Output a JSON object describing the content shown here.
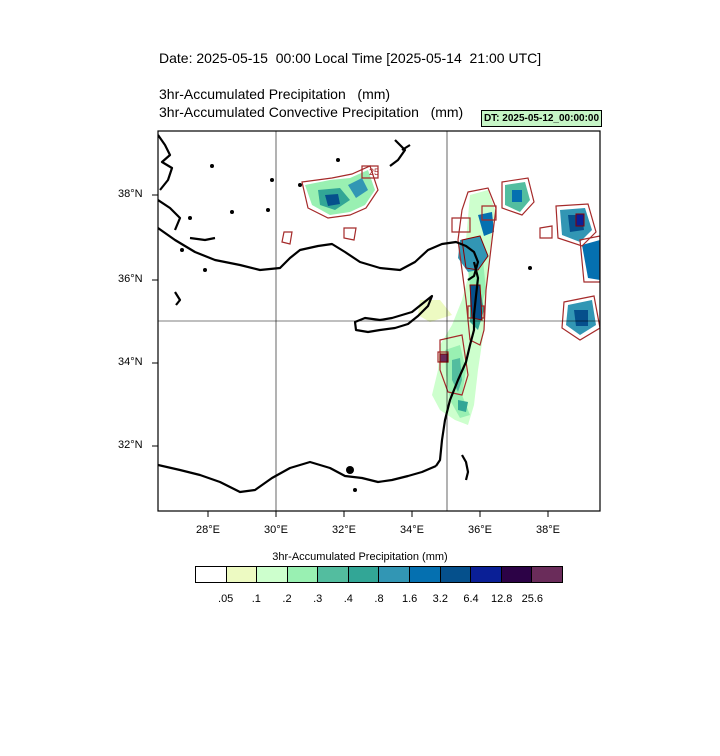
{
  "header": {
    "date_title": "Date: 2025-05-15  00:00 Local Time [2025-05-14  21:00 UTC]",
    "title_line1": "3hr-Accumulated Precipitation   (mm)",
    "title_line2": "3hr-Accumulated Convective Precipitation   (mm)",
    "dt_badge": "DT: 2025-05-12_00:00:00"
  },
  "map": {
    "lon_range": [
      26.6,
      39.4
    ],
    "lat_range": [
      30.3,
      39.4
    ],
    "lon_ticks": [
      "28°E",
      "30°E",
      "32°E",
      "34°E",
      "36°E",
      "38°E"
    ],
    "lat_ticks": [
      "32°N",
      "34°N",
      "36°N",
      "38°N"
    ],
    "grid_lines": {
      "lon": 30,
      "lon2": 35,
      "lat": 35
    },
    "contour_label": "25"
  },
  "colorbar": {
    "title": "3hr-Accumulated Precipitation   (mm)",
    "colors": [
      "#ffffff",
      "#edfac2",
      "#cdffcd",
      "#99f0b2",
      "#53bd9f",
      "#32a696",
      "#3296b4",
      "#0570b0",
      "#05508c",
      "#0a1f96",
      "#2c0246",
      "#6a2c5a"
    ],
    "labels": [
      ".05",
      ".1",
      ".2",
      ".3",
      ".4",
      ".8",
      "1.6",
      "3.2",
      "6.4",
      "12.8",
      "25.6"
    ]
  }
}
